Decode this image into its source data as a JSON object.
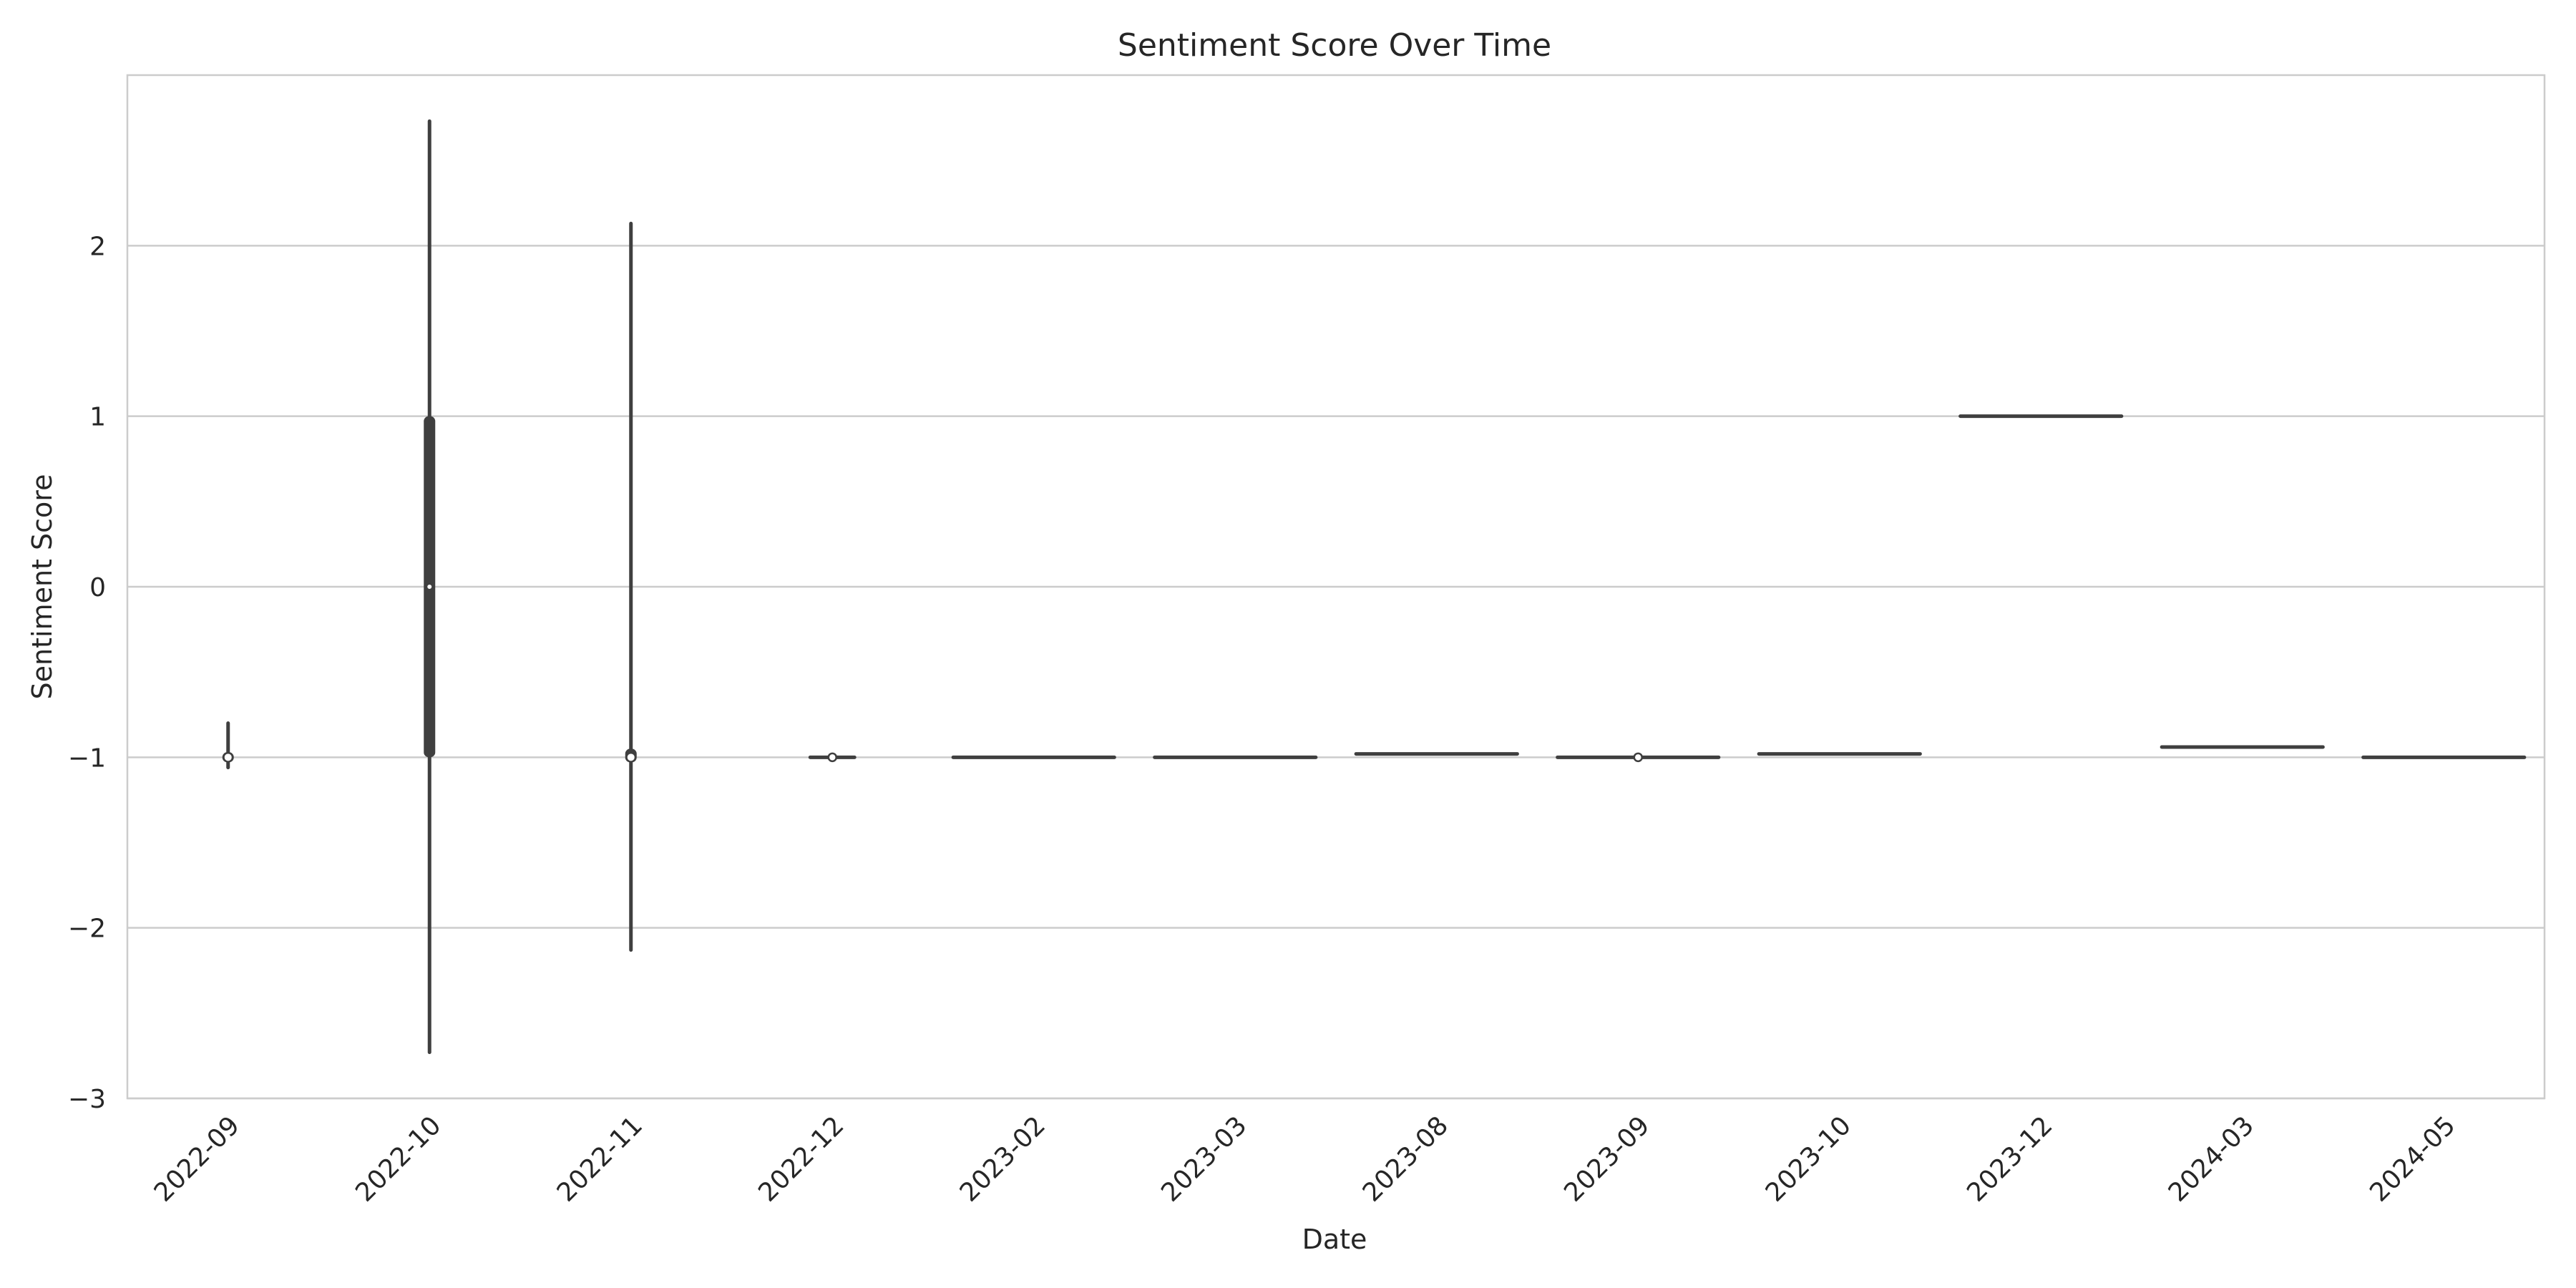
{
  "chart_data": {
    "type": "violin",
    "title": "Sentiment Score Over Time",
    "xlabel": "Date",
    "ylabel": "Sentiment Score",
    "ylim": [
      -3,
      3
    ],
    "yticks": [
      -3,
      -2,
      -1,
      0,
      1,
      2
    ],
    "grid": "horizontal",
    "categories": [
      "2022-09",
      "2022-10",
      "2022-11",
      "2022-12",
      "2023-02",
      "2023-03",
      "2023-08",
      "2023-09",
      "2023-10",
      "2023-12",
      "2024-03",
      "2024-05"
    ],
    "violins": [
      {
        "category": "2022-09",
        "min": -1.06,
        "max": -0.8,
        "q1": -1.03,
        "median": -1.0,
        "q3": -0.97,
        "width": 0.04,
        "shape": "point"
      },
      {
        "category": "2022-10",
        "min": -2.73,
        "max": 2.73,
        "q1": -1.0,
        "median": 0.0,
        "q3": 1.0,
        "width": 0.04,
        "shape": "spike"
      },
      {
        "category": "2022-11",
        "min": -2.13,
        "max": 2.13,
        "q1": -1.03,
        "median": -1.0,
        "q3": -0.95,
        "width": 0.04,
        "shape": "spike"
      },
      {
        "category": "2022-12",
        "min": -1.0,
        "max": -1.0,
        "q1": -1.0,
        "median": -1.0,
        "q3": -1.0,
        "width": 0.22,
        "shape": "flat"
      },
      {
        "category": "2023-02",
        "min": -1.0,
        "max": -1.0,
        "q1": -1.0,
        "median": -1.0,
        "q3": -1.0,
        "width": 0.8,
        "shape": "flat"
      },
      {
        "category": "2023-03",
        "min": -1.0,
        "max": -1.0,
        "q1": -1.0,
        "median": -1.0,
        "q3": -1.0,
        "width": 0.8,
        "shape": "flat"
      },
      {
        "category": "2023-08",
        "min": -0.98,
        "max": -0.98,
        "q1": -0.98,
        "median": -0.98,
        "q3": -0.98,
        "width": 0.8,
        "shape": "flat"
      },
      {
        "category": "2023-09",
        "min": -1.0,
        "max": -1.0,
        "q1": -1.0,
        "median": -1.0,
        "q3": -1.0,
        "width": 0.8,
        "shape": "flat"
      },
      {
        "category": "2023-10",
        "min": -0.98,
        "max": -0.98,
        "q1": -0.98,
        "median": -0.98,
        "q3": -0.98,
        "width": 0.8,
        "shape": "flat"
      },
      {
        "category": "2023-12",
        "min": 1.0,
        "max": 1.0,
        "q1": 1.0,
        "median": 1.0,
        "q3": 1.0,
        "width": 0.8,
        "shape": "flat"
      },
      {
        "category": "2024-03",
        "min": -0.94,
        "max": -0.94,
        "q1": -0.94,
        "median": -0.94,
        "q3": -0.94,
        "width": 0.8,
        "shape": "flat"
      },
      {
        "category": "2024-05",
        "min": -1.0,
        "max": -1.0,
        "q1": -1.0,
        "median": -1.0,
        "q3": -1.0,
        "width": 0.8,
        "shape": "flat"
      }
    ]
  },
  "colors": {
    "background": "#ffffff",
    "grid": "#cccccc",
    "violin": "#3f3f3f",
    "median_marker": "#ffffff",
    "text": "#262626"
  }
}
